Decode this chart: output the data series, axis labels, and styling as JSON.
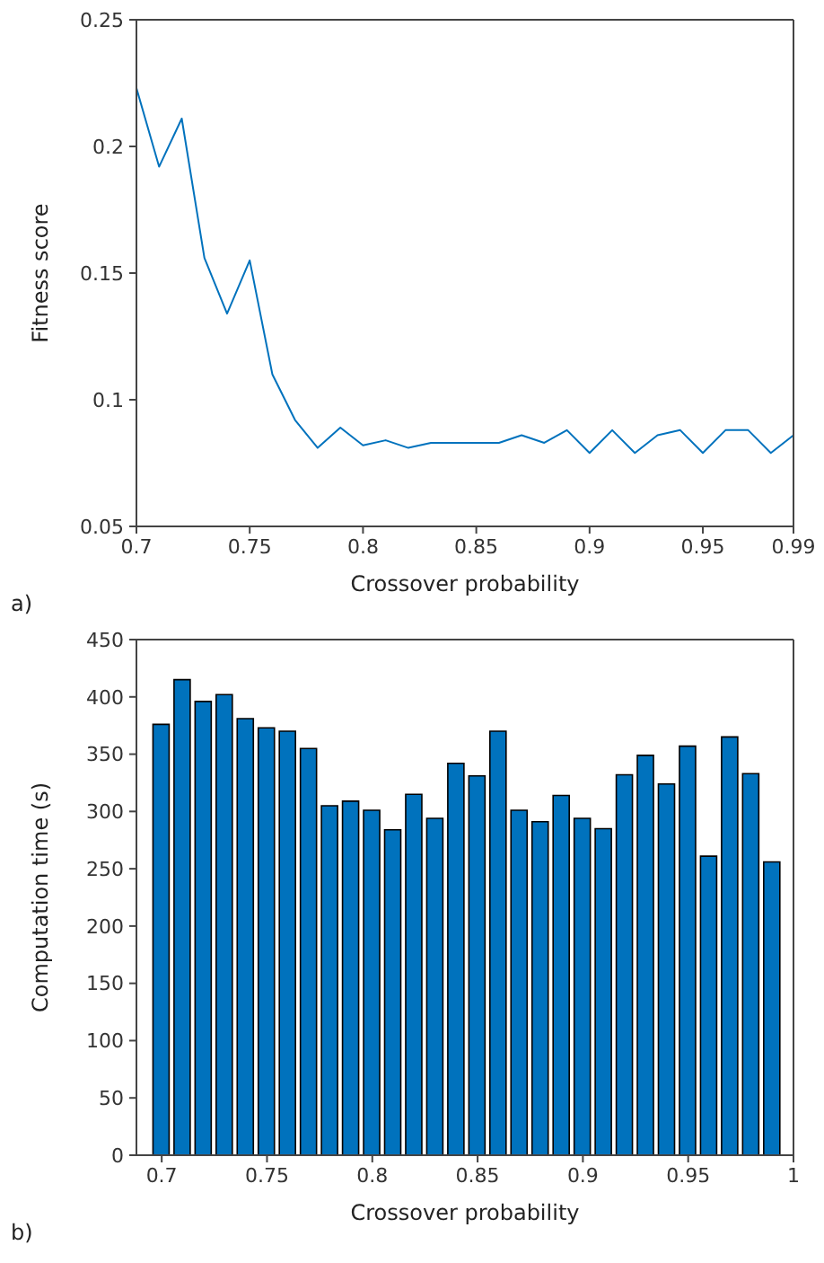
{
  "chart_data": [
    {
      "type": "line",
      "xlabel": "Crossover probability",
      "ylabel": "Fitness score",
      "annotations": [
        "a)"
      ],
      "x": [
        0.7,
        0.71,
        0.72,
        0.73,
        0.74,
        0.75,
        0.76,
        0.77,
        0.78,
        0.79,
        0.8,
        0.81,
        0.82,
        0.83,
        0.84,
        0.85,
        0.86,
        0.87,
        0.88,
        0.89,
        0.9,
        0.91,
        0.92,
        0.93,
        0.94,
        0.95,
        0.96,
        0.97,
        0.98,
        0.99
      ],
      "series": [
        {
          "color": "#0072bd",
          "values": [
            0.223,
            0.192,
            0.211,
            0.156,
            0.134,
            0.155,
            0.11,
            0.092,
            0.081,
            0.089,
            0.082,
            0.084,
            0.081,
            0.083,
            0.083,
            0.083,
            0.083,
            0.086,
            0.083,
            0.088,
            0.079,
            0.088,
            0.079,
            0.086,
            0.088,
            0.079,
            0.088,
            0.088,
            0.079,
            0.086
          ]
        }
      ],
      "xlim": [
        0.7,
        0.99
      ],
      "xticks": [
        0.7,
        0.75,
        0.8,
        0.85,
        0.9,
        0.95,
        0.99
      ],
      "ylim": [
        0.05,
        0.25
      ],
      "yticks": [
        0.05,
        0.1,
        0.15,
        0.2,
        0.25
      ],
      "grid": false,
      "legend": false
    },
    {
      "type": "bar",
      "xlabel": "Crossover probability",
      "ylabel": "Computation time (s)",
      "annotations": [
        "b)"
      ],
      "x": [
        0.7,
        0.71,
        0.72,
        0.73,
        0.74,
        0.75,
        0.76,
        0.77,
        0.78,
        0.79,
        0.8,
        0.81,
        0.82,
        0.83,
        0.84,
        0.85,
        0.86,
        0.87,
        0.88,
        0.89,
        0.9,
        0.91,
        0.92,
        0.93,
        0.94,
        0.95,
        0.96,
        0.97,
        0.98,
        0.99
      ],
      "series": [
        {
          "color": "#0072bd",
          "values": [
            376,
            415,
            396,
            402,
            381,
            373,
            370,
            355,
            305,
            309,
            301,
            284,
            315,
            294,
            342,
            331,
            370,
            301,
            291,
            314,
            294,
            285,
            332,
            349,
            324,
            357,
            261,
            365,
            333,
            256
          ]
        }
      ],
      "xlim": [
        0.688,
        1
      ],
      "xticks": [
        0.7,
        0.75,
        0.8,
        0.85,
        0.9,
        0.95,
        1
      ],
      "ylim": [
        0,
        450
      ],
      "yticks": [
        0,
        50,
        100,
        150,
        200,
        250,
        300,
        350,
        400,
        450
      ],
      "grid": false,
      "legend": false
    }
  ]
}
